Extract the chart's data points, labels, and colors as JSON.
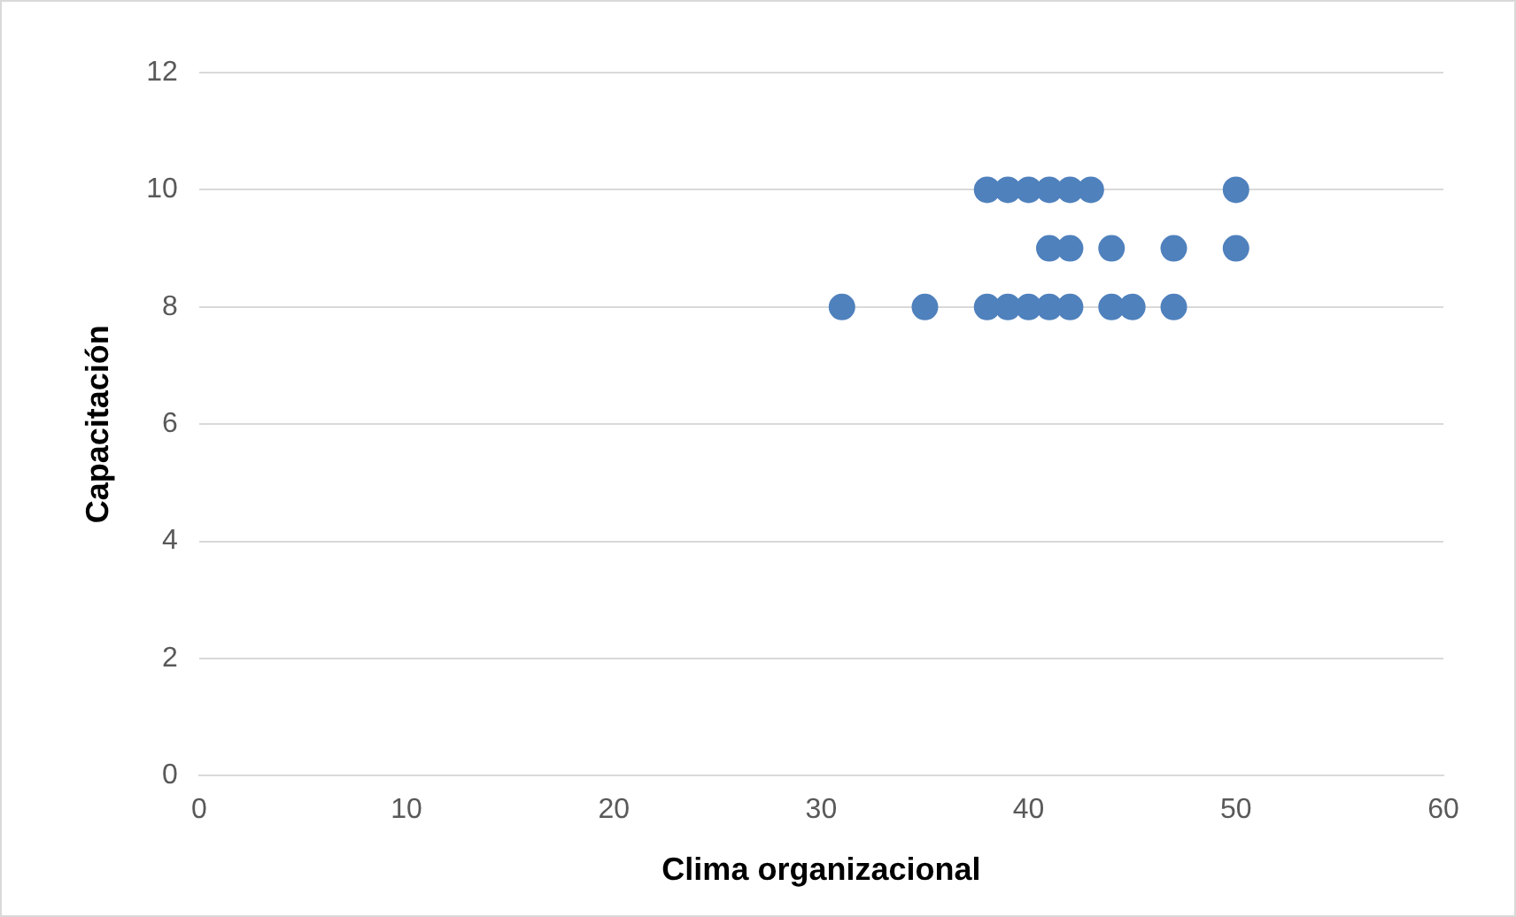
{
  "chart_data": {
    "type": "scatter",
    "xlabel": "Clima organizacional",
    "ylabel": "Capacitación",
    "x": [
      38,
      39,
      40,
      41,
      42,
      43,
      50,
      41,
      42,
      44,
      47,
      50,
      31,
      35,
      38,
      39,
      40,
      41,
      42,
      44,
      45,
      47
    ],
    "values": [
      10,
      10,
      10,
      10,
      10,
      10,
      10,
      9,
      9,
      9,
      9,
      9,
      8,
      8,
      8,
      8,
      8,
      8,
      8,
      8,
      8,
      8
    ],
    "color": "#4f81bd",
    "marker": "circle",
    "xlim": [
      0,
      60
    ],
    "xticks": [
      0,
      10,
      20,
      30,
      40,
      50,
      60
    ],
    "ylim": [
      0,
      12
    ],
    "yticks": [
      0,
      2,
      4,
      6,
      8,
      10,
      12
    ],
    "grid": "y",
    "legend": false
  }
}
